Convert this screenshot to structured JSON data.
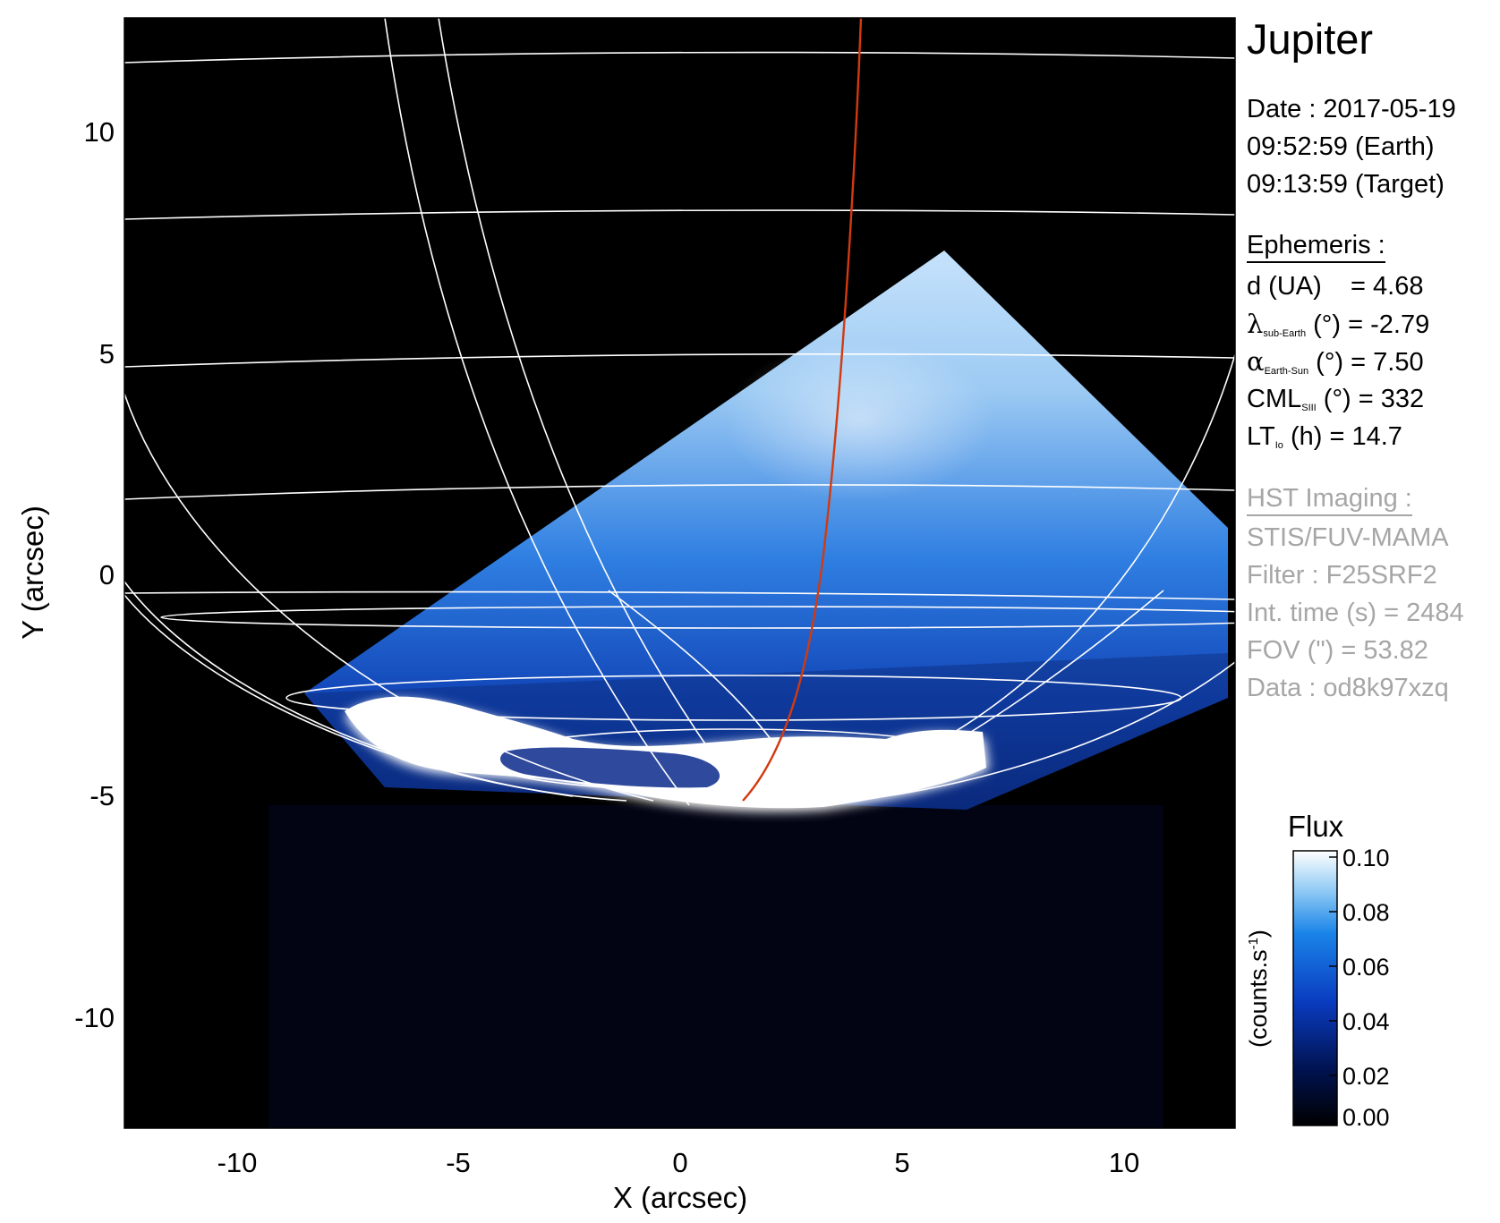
{
  "target": "Jupiter",
  "observation": {
    "date": "Date : 2017-05-19",
    "time_earth": "09:52:59 (Earth)",
    "time_target": "09:13:59 (Target)"
  },
  "ephemeris": {
    "heading": "Ephemeris :",
    "rows": [
      {
        "symbol": "d (UA)",
        "sub": "",
        "rest": "    = 4.68"
      },
      {
        "symbol": "λ",
        "sub": "sub-Earth",
        "rest": " (°) = -2.79"
      },
      {
        "symbol": "α",
        "sub": "Earth-Sun",
        "rest": " (°) = 7.50"
      },
      {
        "symbol": "CML",
        "sub": "SIII",
        "rest": " (°) = 332"
      },
      {
        "symbol": "LT",
        "sub": "Io",
        "rest": " (h) = 14.7"
      }
    ]
  },
  "hst": {
    "heading": "HST Imaging :",
    "lines": [
      "STIS/FUV-MAMA",
      "Filter : F25SRF2",
      "Int. time (s) = 2484",
      "FOV (\") = 53.82",
      "Data : od8k97xzq"
    ]
  },
  "axes": {
    "xlabel": "X (arcsec)",
    "ylabel": "Y (arcsec)",
    "xlim": [
      -12.5,
      12.5
    ],
    "ylim": [
      -12.5,
      12.5
    ],
    "xticks": [
      "-10",
      "-5",
      "0",
      "5",
      "10"
    ],
    "yticks": [
      "10",
      "5",
      "0",
      "-5",
      "-10"
    ]
  },
  "colorbar": {
    "title": "Flux",
    "label": "(counts.s-1)",
    "unit_main": "(counts.s",
    "unit_exp": "-1",
    "ticks": [
      "0.10",
      "0.08",
      "0.06",
      "0.04",
      "0.02",
      "0.00"
    ],
    "range": [
      0.0,
      0.1
    ]
  },
  "colors": {
    "background": "#000000",
    "grid": "#ffffff",
    "footprint": "#d23a10",
    "colormap": [
      "#000000",
      "#00124f",
      "#0a3cc0",
      "#1a84e8",
      "#8cc8f4",
      "#ffffff"
    ]
  }
}
